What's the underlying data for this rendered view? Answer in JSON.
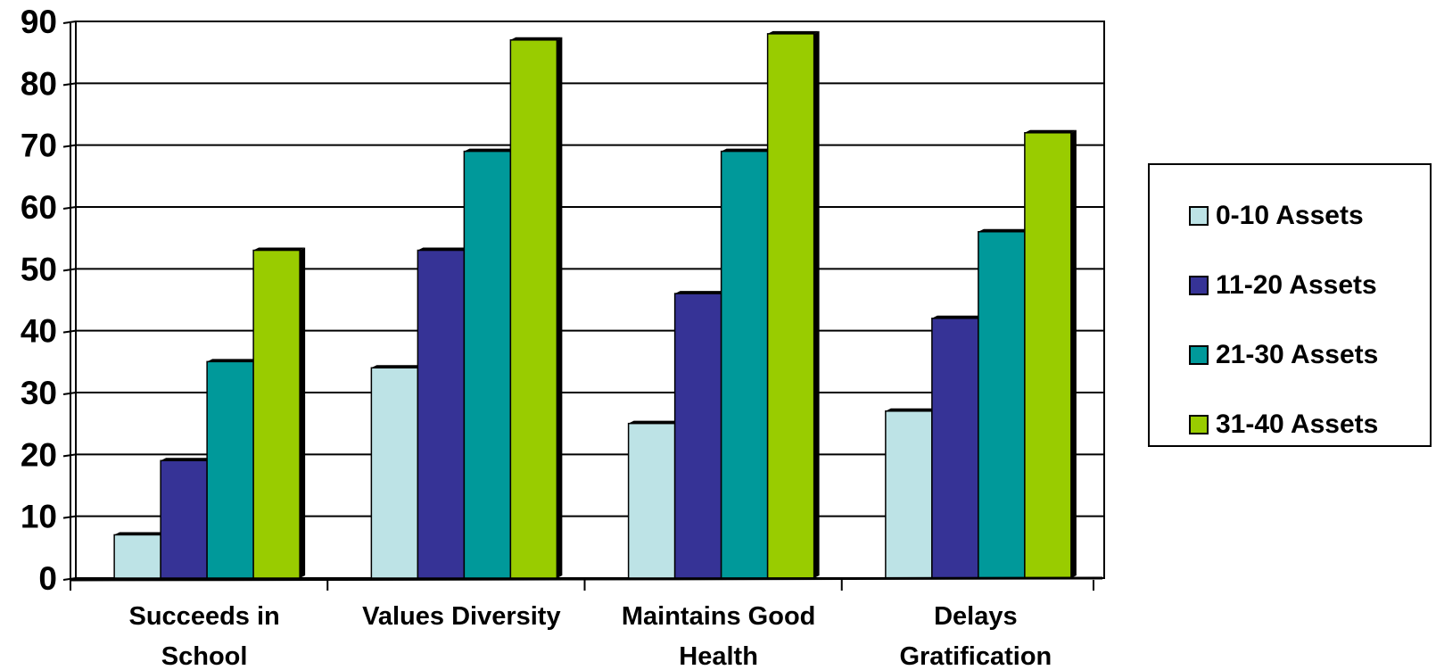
{
  "chart_data": {
    "type": "bar",
    "categories": [
      [
        "Succeeds in",
        "School"
      ],
      [
        "Values Diversity"
      ],
      [
        "Maintains Good",
        "Health"
      ],
      [
        "Delays",
        "Gratification"
      ]
    ],
    "series": [
      {
        "name": "0-10 Assets",
        "color": "#bde3e6",
        "values": [
          7,
          34,
          25,
          27
        ]
      },
      {
        "name": "11-20 Assets",
        "color": "#363396",
        "values": [
          19,
          53,
          46,
          42
        ]
      },
      {
        "name": "21-30 Assets",
        "color": "#00999a",
        "values": [
          35,
          69,
          69,
          56
        ]
      },
      {
        "name": "31-40 Assets",
        "color": "#99cc00",
        "values": [
          53,
          87,
          88,
          72
        ]
      }
    ],
    "ylim": [
      0,
      90
    ],
    "yticks": [
      0,
      10,
      20,
      30,
      40,
      50,
      60,
      70,
      80,
      90
    ],
    "grid": true,
    "legend_position": "right"
  }
}
